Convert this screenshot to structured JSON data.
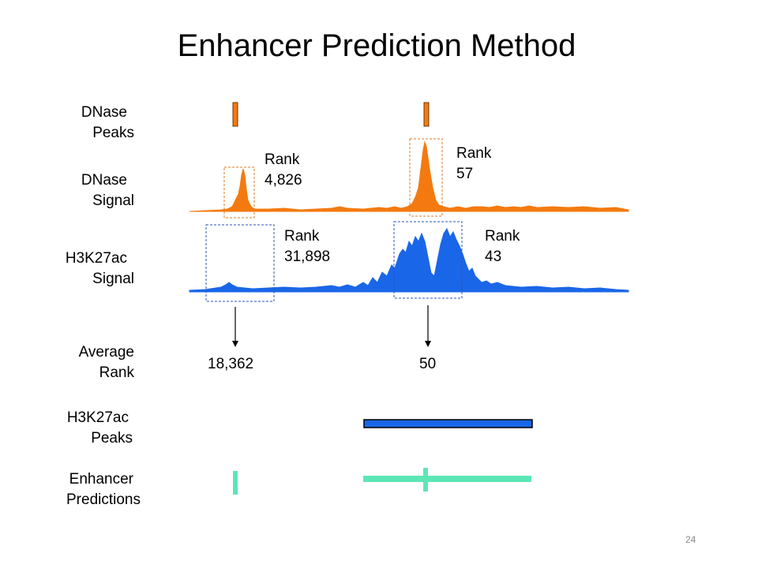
{
  "title": "Enhancer Prediction Method",
  "page_number": "24",
  "colors": {
    "dnase": "#f47a0f",
    "h3k27ac": "#1a66e8",
    "enhancer": "#5de6b5",
    "peak_outline": "#6b3a12",
    "box_orange": "#e07a20",
    "box_blue": "#2a55b8"
  },
  "row_labels": {
    "dnase_peaks": [
      "DNase",
      "Peaks"
    ],
    "dnase_signal": [
      "DNase",
      "Signal"
    ],
    "h3k27ac_signal": [
      "H3K27ac",
      "Signal"
    ],
    "average_rank": [
      "Average",
      "Rank"
    ],
    "h3k27ac_peaks": [
      "H3K27ac",
      "Peaks"
    ],
    "enhancer_predictions": [
      "Enhancer",
      "Predictions"
    ]
  },
  "ranks": {
    "dnase_left": [
      "Rank",
      "4,826"
    ],
    "dnase_right": [
      "Rank",
      "57"
    ],
    "h3k27ac_left": [
      "Rank",
      "31,898"
    ],
    "h3k27ac_right": [
      "Rank",
      "43"
    ]
  },
  "average_ranks": {
    "left": "18,362",
    "right": "50"
  }
}
